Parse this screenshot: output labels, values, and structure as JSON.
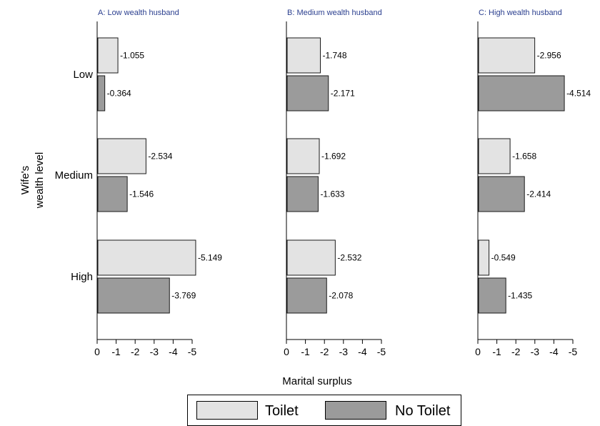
{
  "chart_data": {
    "type": "bar",
    "orientation": "horizontal",
    "ylabel": "Wife's\nwealth level",
    "xlabel": "Marital surplus",
    "categories": [
      "Low",
      "Medium",
      "High"
    ],
    "xlim": [
      0,
      -5
    ],
    "xticks": [
      0,
      -1,
      -2,
      -3,
      -4,
      -5
    ],
    "xtick_labels": [
      "0",
      "-1",
      "-2",
      "-3",
      "-4",
      "-5"
    ],
    "legend_position": "bottom",
    "grid": false,
    "colors": {
      "Toilet": "#e3e3e3",
      "No Toilet": "#9b9b9b",
      "edge": "#1a1a1a",
      "title": "#2b3f8f"
    },
    "panels": [
      {
        "title": "A: Low wealth husband",
        "series": [
          {
            "name": "Toilet",
            "values": [
              -1.055,
              -2.534,
              -5.149
            ],
            "labels": [
              "-1.055",
              "-2.534",
              "-5.149"
            ]
          },
          {
            "name": "No Toilet",
            "values": [
              -0.364,
              -1.546,
              -3.769
            ],
            "labels": [
              "-0.364",
              "-1.546",
              "-3.769"
            ]
          }
        ]
      },
      {
        "title": "B: Medium wealth husband",
        "series": [
          {
            "name": "Toilet",
            "values": [
              -1.748,
              -1.692,
              -2.532
            ],
            "labels": [
              "-1.748",
              "-1.692",
              "-2.532"
            ]
          },
          {
            "name": "No Toilet",
            "values": [
              -2.171,
              -1.633,
              -2.078
            ],
            "labels": [
              "-2.171",
              "-1.633",
              "-2.078"
            ]
          }
        ]
      },
      {
        "title": "C: High wealth husband",
        "series": [
          {
            "name": "Toilet",
            "values": [
              -2.956,
              -1.658,
              -0.549
            ],
            "labels": [
              "-2.956",
              "-1.658",
              "-0.549"
            ]
          },
          {
            "name": "No Toilet",
            "values": [
              -4.514,
              -2.414,
              -1.435
            ],
            "labels": [
              "-4.514",
              "-2.414",
              "-1.435"
            ]
          }
        ]
      }
    ],
    "legend": [
      "Toilet",
      "No Toilet"
    ]
  }
}
